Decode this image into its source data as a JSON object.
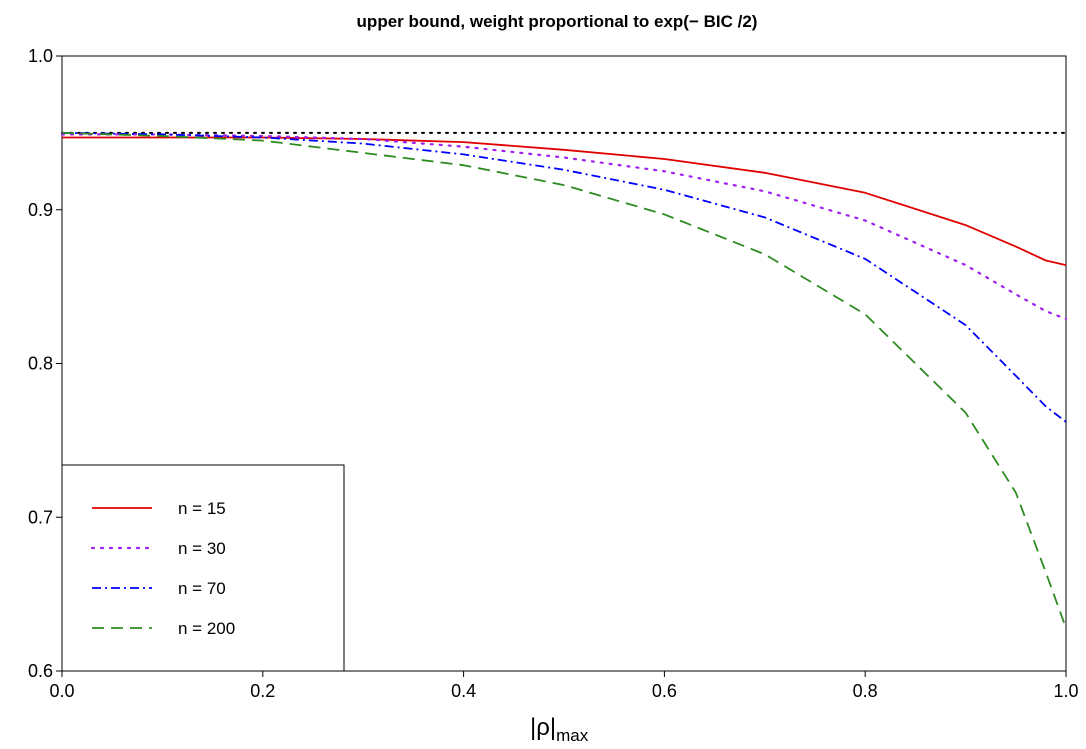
{
  "chart_data": {
    "type": "line",
    "title": "upper bound, weight proportional to exp(− BIC /2)",
    "xlabel_main": "|ρ|",
    "xlabel_sub": "max",
    "ylabel": "",
    "xlim": [
      0.0,
      1.0
    ],
    "ylim": [
      0.6,
      1.0
    ],
    "x_ticks": [
      "0.0",
      "0.2",
      "0.4",
      "0.6",
      "0.8",
      "1.0"
    ],
    "y_ticks": [
      "0.6",
      "0.7",
      "0.8",
      "0.9",
      "1.0"
    ],
    "grid": false,
    "legend_position": "bottom-left",
    "reference_line": {
      "y": 0.95,
      "color": "#000000",
      "style": "dotted"
    },
    "series": [
      {
        "name": "n = 15",
        "color": "#e00000",
        "style": "solid",
        "x": [
          0.0,
          0.1,
          0.2,
          0.3,
          0.4,
          0.5,
          0.6,
          0.7,
          0.8,
          0.9,
          0.95,
          0.98,
          1.0
        ],
        "y": [
          0.947,
          0.947,
          0.947,
          0.946,
          0.944,
          0.939,
          0.933,
          0.924,
          0.911,
          0.89,
          0.876,
          0.867,
          0.864
        ]
      },
      {
        "name": "n = 30",
        "color": "#a020f0",
        "style": "dotted",
        "x": [
          0.0,
          0.1,
          0.2,
          0.3,
          0.4,
          0.5,
          0.6,
          0.7,
          0.8,
          0.9,
          0.95,
          0.98,
          1.0
        ],
        "y": [
          0.949,
          0.949,
          0.948,
          0.946,
          0.941,
          0.934,
          0.925,
          0.912,
          0.893,
          0.864,
          0.845,
          0.834,
          0.829
        ]
      },
      {
        "name": "n = 70",
        "color": "#0000ff",
        "style": "dashdot",
        "x": [
          0.0,
          0.1,
          0.2,
          0.3,
          0.4,
          0.5,
          0.6,
          0.7,
          0.8,
          0.9,
          0.95,
          0.98,
          1.0
        ],
        "y": [
          0.95,
          0.949,
          0.947,
          0.943,
          0.936,
          0.926,
          0.913,
          0.895,
          0.868,
          0.825,
          0.792,
          0.772,
          0.762
        ]
      },
      {
        "name": "n = 200",
        "color": "#2e8b22",
        "style": "dashed",
        "x": [
          0.0,
          0.1,
          0.2,
          0.3,
          0.4,
          0.5,
          0.6,
          0.7,
          0.8,
          0.9,
          0.95,
          0.98,
          1.0
        ],
        "y": [
          0.95,
          0.948,
          0.945,
          0.937,
          0.929,
          0.916,
          0.897,
          0.871,
          0.832,
          0.768,
          0.716,
          0.664,
          0.628
        ]
      }
    ]
  }
}
